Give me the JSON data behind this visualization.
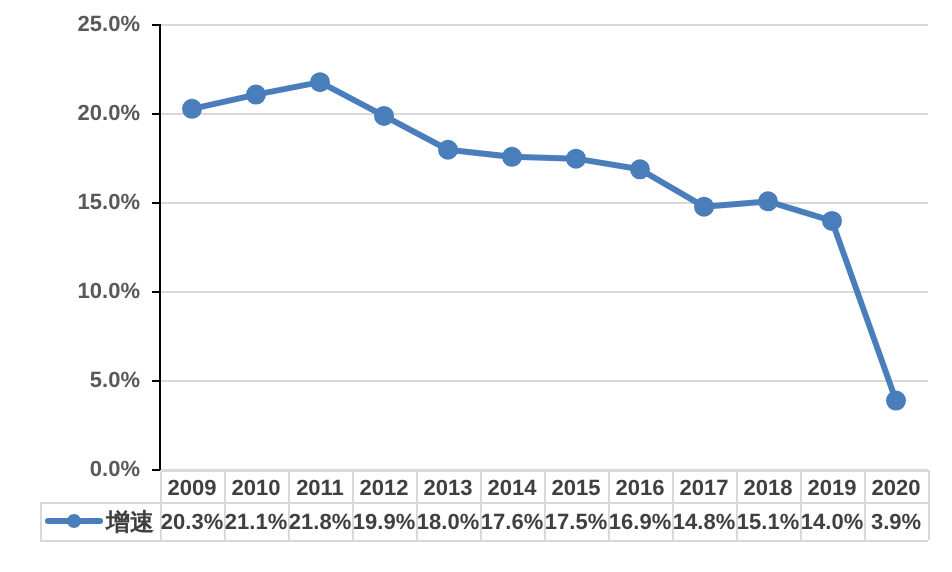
{
  "chart_data": {
    "type": "line",
    "categories": [
      "2009",
      "2010",
      "2011",
      "2012",
      "2013",
      "2014",
      "2015",
      "2016",
      "2017",
      "2018",
      "2019",
      "2020"
    ],
    "series": [
      {
        "name": "增速",
        "color": "#4a7ebb",
        "values": [
          20.3,
          21.1,
          21.8,
          19.9,
          18.0,
          17.6,
          17.5,
          16.9,
          14.8,
          15.1,
          14.0,
          3.9
        ],
        "value_labels": [
          "20.3%",
          "21.1%",
          "21.8%",
          "19.9%",
          "18.0%",
          "17.6%",
          "17.5%",
          "16.9%",
          "14.8%",
          "15.1%",
          "14.0%",
          "3.9%"
        ]
      }
    ],
    "ylim": [
      0,
      25
    ],
    "yticks": [
      {
        "value": 0,
        "label": "0.0%"
      },
      {
        "value": 5,
        "label": "5.0%"
      },
      {
        "value": 10,
        "label": "10.0%"
      },
      {
        "value": 15,
        "label": "15.0%"
      },
      {
        "value": 20,
        "label": "20.0%"
      },
      {
        "value": 25,
        "label": "25.0%"
      }
    ],
    "grid": "y",
    "legend": "bottom",
    "marker": "circle",
    "line_style": "solid"
  }
}
